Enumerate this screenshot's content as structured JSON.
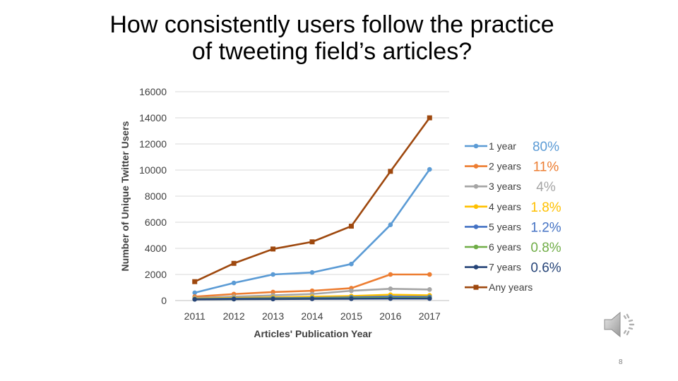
{
  "slide": {
    "title": "How consistently users follow the practice of tweeting field’s articles?",
    "page_number": "8",
    "speaker_icon": "speaker-audio-icon"
  },
  "chart_data": {
    "type": "line",
    "xlabel": "Articles' Publication Year",
    "ylabel": "Number of Unique Twitter Users",
    "x": [
      "2011",
      "2012",
      "2013",
      "2014",
      "2015",
      "2016",
      "2017"
    ],
    "ylim": [
      0,
      16000
    ],
    "yticks": [
      0,
      2000,
      4000,
      6000,
      8000,
      10000,
      12000,
      14000,
      16000
    ],
    "grid": "horizontal",
    "legend_position": "right",
    "series": [
      {
        "name": "1 year",
        "color": "#5B9BD5",
        "marker": "circle",
        "percent": "80%",
        "values": [
          600,
          1350,
          2000,
          2150,
          2800,
          5800,
          10050
        ]
      },
      {
        "name": "2 years",
        "color": "#ED7D31",
        "marker": "circle",
        "percent": "11%",
        "values": [
          300,
          500,
          650,
          750,
          950,
          2000,
          2000
        ]
      },
      {
        "name": "3 years",
        "color": "#A5A5A5",
        "marker": "circle",
        "percent": "4%",
        "values": [
          200,
          300,
          400,
          500,
          750,
          900,
          850
        ]
      },
      {
        "name": "4 years",
        "color": "#FFC000",
        "marker": "circle",
        "percent": "1.8%",
        "values": [
          150,
          200,
          250,
          300,
          350,
          450,
          400
        ]
      },
      {
        "name": "5 years",
        "color": "#4472C4",
        "marker": "circle",
        "percent": "1.2%",
        "values": [
          120,
          150,
          180,
          200,
          250,
          300,
          280
        ]
      },
      {
        "name": "6 years",
        "color": "#70AD47",
        "marker": "circle",
        "percent": "0.8%",
        "values": [
          100,
          120,
          140,
          160,
          180,
          200,
          190
        ]
      },
      {
        "name": "7 years",
        "color": "#264478",
        "marker": "circle",
        "percent": "0.6%",
        "values": [
          90,
          110,
          120,
          130,
          140,
          150,
          150
        ]
      },
      {
        "name": "Any years",
        "color": "#9E480E",
        "marker": "square",
        "percent": "",
        "values": [
          1450,
          2850,
          3950,
          4500,
          5700,
          9900,
          14000
        ]
      }
    ]
  }
}
